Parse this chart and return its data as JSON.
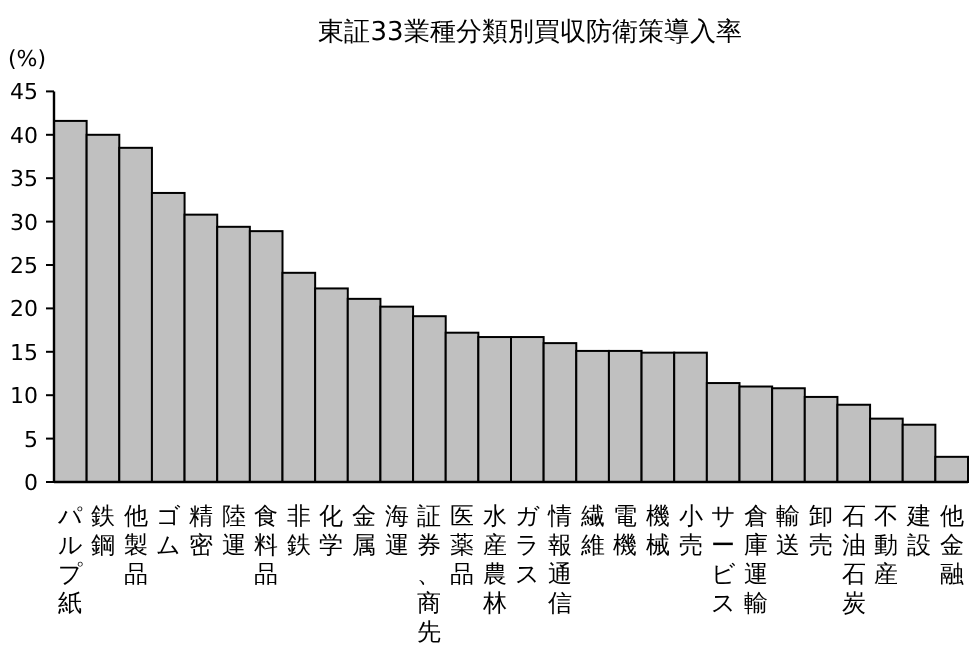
{
  "chart_data": {
    "type": "bar",
    "title": "東証33業種分類別買収防衛策導入率",
    "ylabel": "(%)",
    "categories": [
      "パルプ紙",
      "鉄鋼",
      "他製品",
      "ゴム",
      "精密",
      "陸運",
      "食料品",
      "非鉄",
      "化学",
      "金属",
      "海運",
      "証券、商先",
      "医薬品",
      "水産農林",
      "ガラス",
      "情報通信",
      "繊維",
      "電機",
      "機械",
      "小売",
      "サービス",
      "倉庫運輸",
      "輸送",
      "卸売",
      "石油石炭",
      "不動産",
      "建設",
      "他金融"
    ],
    "values": [
      41.6,
      40.0,
      38.5,
      33.3,
      30.8,
      29.4,
      28.9,
      24.1,
      22.3,
      21.1,
      20.2,
      19.1,
      17.2,
      16.7,
      16.7,
      16.0,
      15.1,
      15.1,
      14.9,
      14.9,
      11.4,
      11.0,
      10.8,
      9.8,
      8.9,
      7.3,
      6.6,
      2.9
    ],
    "color": "#c0c0c0",
    "ylim": [
      0,
      45
    ],
    "yticks": [
      0,
      5,
      10,
      15,
      20,
      25,
      30,
      35,
      40,
      45
    ],
    "grid": false
  }
}
